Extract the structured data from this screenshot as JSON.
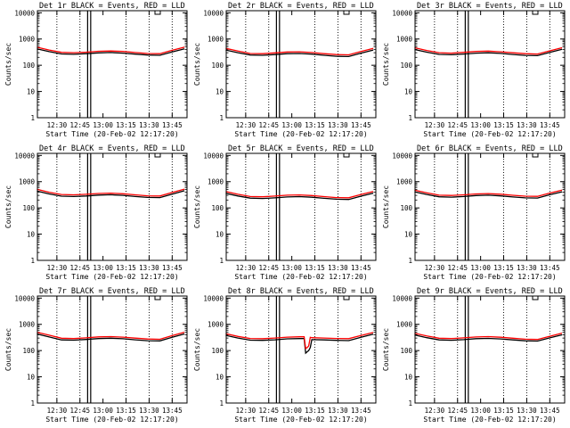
{
  "chart_data": [
    {
      "type": "line",
      "title": "Det 1r BLACK = Events, RED = LLD",
      "xlabel": "Start Time (20-Feb-02 12:17:20)",
      "ylabel": "Counts/sec",
      "yscale": "log",
      "ylim": [
        1,
        12000
      ],
      "xlim": [
        "12:17:20",
        "13:54:40"
      ],
      "yticks": [
        "1",
        "10",
        "100",
        "1000",
        "10000"
      ],
      "xticks": [
        "12:30",
        "12:45",
        "13:00",
        "13:15",
        "13:30",
        "13:45"
      ],
      "vlines_dotted": [
        "12:30",
        "12:45",
        "13:15",
        "13:30",
        "13:45"
      ],
      "vlines_solid": [
        "12:50",
        "12:52"
      ],
      "series": [
        {
          "name": "Events",
          "color": "#000000",
          "x": [
            "12:17",
            "12:25",
            "12:33",
            "12:41",
            "12:49",
            "12:57",
            "13:05",
            "13:13",
            "13:21",
            "13:29",
            "13:37",
            "13:45",
            "13:53"
          ],
          "y": [
            420,
            330,
            270,
            262,
            275,
            295,
            305,
            290,
            265,
            245,
            240,
            320,
            420
          ]
        },
        {
          "name": "LLD",
          "color": "#ff0000",
          "x": [
            "12:17",
            "12:25",
            "12:33",
            "12:41",
            "12:49",
            "12:57",
            "13:05",
            "13:13",
            "13:21",
            "13:29",
            "13:37",
            "13:45",
            "13:53"
          ],
          "y": [
            490,
            380,
            310,
            300,
            315,
            340,
            350,
            335,
            305,
            280,
            275,
            370,
            490
          ]
        }
      ]
    },
    {
      "type": "line",
      "title": "Det 2r BLACK = Events, RED = LLD",
      "xlabel": "Start Time (20-Feb-02 12:17:20)",
      "ylabel": "Counts/sec",
      "yscale": "log",
      "ylim": [
        1,
        12000
      ],
      "xlim": [
        "12:17:20",
        "13:54:40"
      ],
      "yticks": [
        "1",
        "10",
        "100",
        "1000",
        "10000"
      ],
      "xticks": [
        "12:30",
        "12:45",
        "13:00",
        "13:15",
        "13:30",
        "13:45"
      ],
      "vlines_dotted": [
        "12:30",
        "12:45",
        "13:15",
        "13:30",
        "13:45"
      ],
      "vlines_solid": [
        "12:50",
        "12:52"
      ],
      "series": [
        {
          "name": "Events",
          "color": "#000000",
          "x": [
            "12:17",
            "12:25",
            "12:33",
            "12:41",
            "12:49",
            "12:57",
            "13:05",
            "13:13",
            "13:21",
            "13:29",
            "13:37",
            "13:45",
            "13:53"
          ],
          "y": [
            380,
            300,
            245,
            240,
            255,
            275,
            280,
            265,
            240,
            220,
            215,
            290,
            380
          ]
        },
        {
          "name": "LLD",
          "color": "#ff0000",
          "x": [
            "12:17",
            "12:25",
            "12:33",
            "12:41",
            "12:49",
            "12:57",
            "13:05",
            "13:13",
            "13:21",
            "13:29",
            "13:37",
            "13:45",
            "13:53"
          ],
          "y": [
            440,
            345,
            280,
            275,
            295,
            320,
            325,
            305,
            275,
            255,
            250,
            335,
            440
          ]
        }
      ]
    },
    {
      "type": "line",
      "title": "Det 3r BLACK = Events, RED = LLD",
      "xlabel": "Start Time (20-Feb-02 12:17:20)",
      "ylabel": "Counts/sec",
      "yscale": "log",
      "ylim": [
        1,
        12000
      ],
      "xlim": [
        "12:17:20",
        "13:54:40"
      ],
      "yticks": [
        "1",
        "10",
        "100",
        "1000",
        "10000"
      ],
      "xticks": [
        "12:30",
        "12:45",
        "13:00",
        "13:15",
        "13:30",
        "13:45"
      ],
      "vlines_dotted": [
        "12:30",
        "12:45",
        "13:15",
        "13:30",
        "13:45"
      ],
      "vlines_solid": [
        "12:50",
        "12:52"
      ],
      "series": [
        {
          "name": "Events",
          "color": "#000000",
          "x": [
            "12:17",
            "12:25",
            "12:33",
            "12:41",
            "12:49",
            "12:57",
            "13:05",
            "13:13",
            "13:21",
            "13:29",
            "13:37",
            "13:45",
            "13:53"
          ],
          "y": [
            400,
            315,
            260,
            252,
            268,
            290,
            298,
            282,
            258,
            238,
            232,
            310,
            405
          ]
        },
        {
          "name": "LLD",
          "color": "#ff0000",
          "x": [
            "12:17",
            "12:25",
            "12:33",
            "12:41",
            "12:49",
            "12:57",
            "13:05",
            "13:13",
            "13:21",
            "13:29",
            "13:37",
            "13:45",
            "13:53"
          ],
          "y": [
            465,
            365,
            300,
            290,
            310,
            335,
            345,
            325,
            298,
            275,
            268,
            355,
            465
          ]
        }
      ]
    },
    {
      "type": "line",
      "title": "Det 4r BLACK = Events, RED = LLD",
      "xlabel": "Start Time (20-Feb-02 12:17:20)",
      "ylabel": "Counts/sec",
      "yscale": "log",
      "ylim": [
        1,
        12000
      ],
      "xlim": [
        "12:17:20",
        "13:54:40"
      ],
      "yticks": [
        "1",
        "10",
        "100",
        "1000",
        "10000"
      ],
      "xticks": [
        "12:30",
        "12:45",
        "13:00",
        "13:15",
        "13:30",
        "13:45"
      ],
      "vlines_dotted": [
        "12:30",
        "12:45",
        "13:15",
        "13:30",
        "13:45"
      ],
      "vlines_solid": [
        "12:50",
        "12:52"
      ],
      "series": [
        {
          "name": "Events",
          "color": "#000000",
          "x": [
            "12:17",
            "12:25",
            "12:33",
            "12:41",
            "12:49",
            "12:57",
            "13:05",
            "13:13",
            "13:21",
            "13:29",
            "13:37",
            "13:45",
            "13:53"
          ],
          "y": [
            440,
            340,
            280,
            272,
            285,
            308,
            318,
            300,
            272,
            252,
            248,
            335,
            450
          ]
        },
        {
          "name": "LLD",
          "color": "#ff0000",
          "x": [
            "12:17",
            "12:25",
            "12:33",
            "12:41",
            "12:49",
            "12:57",
            "13:05",
            "13:13",
            "13:21",
            "13:29",
            "13:37",
            "13:45",
            "13:53"
          ],
          "y": [
            510,
            395,
            325,
            315,
            330,
            355,
            365,
            345,
            315,
            290,
            285,
            385,
            520
          ]
        }
      ]
    },
    {
      "type": "line",
      "title": "Det 5r BLACK = Events, RED = LLD",
      "xlabel": "Start Time (20-Feb-02 12:17:20)",
      "ylabel": "Counts/sec",
      "yscale": "log",
      "ylim": [
        1,
        12000
      ],
      "xlim": [
        "12:17:20",
        "13:54:40"
      ],
      "yticks": [
        "1",
        "10",
        "100",
        "1000",
        "10000"
      ],
      "xticks": [
        "12:30",
        "12:45",
        "13:00",
        "13:15",
        "13:30",
        "13:45"
      ],
      "vlines_dotted": [
        "12:30",
        "12:45",
        "13:15",
        "13:30",
        "13:45"
      ],
      "vlines_solid": [
        "12:50",
        "12:52"
      ],
      "series": [
        {
          "name": "Events",
          "color": "#000000",
          "x": [
            "12:17",
            "12:25",
            "12:33",
            "12:41",
            "12:49",
            "12:57",
            "13:05",
            "13:13",
            "13:21",
            "13:29",
            "13:37",
            "13:45",
            "13:53"
          ],
          "y": [
            360,
            285,
            235,
            228,
            242,
            262,
            270,
            255,
            232,
            214,
            210,
            280,
            365
          ]
        },
        {
          "name": "LLD",
          "color": "#ff0000",
          "x": [
            "12:17",
            "12:25",
            "12:33",
            "12:41",
            "12:49",
            "12:57",
            "13:05",
            "13:13",
            "13:21",
            "13:29",
            "13:37",
            "13:45",
            "13:53"
          ],
          "y": [
            420,
            330,
            272,
            265,
            282,
            305,
            312,
            295,
            270,
            248,
            243,
            325,
            425
          ]
        }
      ]
    },
    {
      "type": "line",
      "title": "Det 6r BLACK = Events, RED = LLD",
      "xlabel": "Start Time (20-Feb-02 12:17:20)",
      "ylabel": "Counts/sec",
      "yscale": "log",
      "ylim": [
        1,
        12000
      ],
      "xlim": [
        "12:17:20",
        "13:54:40"
      ],
      "yticks": [
        "1",
        "10",
        "100",
        "1000",
        "10000"
      ],
      "xticks": [
        "12:30",
        "12:45",
        "13:00",
        "13:15",
        "13:30",
        "13:45"
      ],
      "vlines_dotted": [
        "12:30",
        "12:45",
        "13:15",
        "13:30",
        "13:45"
      ],
      "vlines_solid": [
        "12:50",
        "12:52"
      ],
      "series": [
        {
          "name": "Events",
          "color": "#000000",
          "x": [
            "12:17",
            "12:25",
            "12:33",
            "12:41",
            "12:49",
            "12:57",
            "13:05",
            "13:13",
            "13:21",
            "13:29",
            "13:37",
            "13:45",
            "13:53"
          ],
          "y": [
            410,
            325,
            265,
            258,
            272,
            295,
            305,
            288,
            262,
            242,
            238,
            318,
            410
          ]
        },
        {
          "name": "LLD",
          "color": "#ff0000",
          "x": [
            "12:17",
            "12:25",
            "12:33",
            "12:41",
            "12:49",
            "12:57",
            "13:05",
            "13:13",
            "13:21",
            "13:29",
            "13:37",
            "13:45",
            "13:53"
          ],
          "y": [
            475,
            375,
            305,
            298,
            315,
            340,
            352,
            332,
            302,
            280,
            275,
            368,
            478
          ]
        }
      ]
    },
    {
      "type": "line",
      "title": "Det 7r BLACK = Events, RED = LLD",
      "xlabel": "Start Time (20-Feb-02 12:17:20)",
      "ylabel": "Counts/sec",
      "yscale": "log",
      "ylim": [
        1,
        12000
      ],
      "xlim": [
        "12:17:20",
        "13:54:40"
      ],
      "yticks": [
        "1",
        "10",
        "100",
        "1000",
        "10000"
      ],
      "xticks": [
        "12:30",
        "12:45",
        "13:00",
        "13:15",
        "13:30",
        "13:45"
      ],
      "vlines_dotted": [
        "12:30",
        "12:45",
        "13:15",
        "13:30",
        "13:45"
      ],
      "vlines_solid": [
        "12:50",
        "12:52"
      ],
      "series": [
        {
          "name": "Events",
          "color": "#000000",
          "x": [
            "12:17",
            "12:25",
            "12:33",
            "12:41",
            "12:49",
            "12:57",
            "13:05",
            "13:13",
            "13:21",
            "13:29",
            "13:37",
            "13:45",
            "13:53"
          ],
          "y": [
            430,
            330,
            255,
            250,
            265,
            288,
            296,
            282,
            258,
            238,
            234,
            320,
            430
          ]
        },
        {
          "name": "LLD",
          "color": "#ff0000",
          "x": [
            "12:17",
            "12:25",
            "12:33",
            "12:41",
            "12:49",
            "12:57",
            "13:05",
            "13:13",
            "13:21",
            "13:29",
            "13:37",
            "13:45",
            "13:53"
          ],
          "y": [
            500,
            385,
            295,
            288,
            305,
            332,
            342,
            326,
            298,
            275,
            270,
            370,
            500
          ]
        }
      ]
    },
    {
      "type": "line",
      "title": "Det 8r BLACK = Events, RED = LLD",
      "xlabel": "Start Time (20-Feb-02 12:17:20)",
      "ylabel": "Counts/sec",
      "yscale": "log",
      "ylim": [
        1,
        12000
      ],
      "xlim": [
        "12:17:20",
        "13:54:40"
      ],
      "yticks": [
        "1",
        "10",
        "100",
        "1000",
        "10000"
      ],
      "xticks": [
        "12:30",
        "12:45",
        "13:00",
        "13:15",
        "13:30",
        "13:45"
      ],
      "vlines_dotted": [
        "12:30",
        "12:45",
        "13:15",
        "13:30",
        "13:45"
      ],
      "vlines_solid": [
        "12:50",
        "12:52"
      ],
      "series": [
        {
          "name": "Events",
          "color": "#000000",
          "x": [
            "12:17",
            "12:25",
            "12:33",
            "12:41",
            "12:49",
            "12:57",
            "13:05",
            "13:08",
            "13:09",
            "13:10",
            "13:11",
            "13:12",
            "13:13",
            "13:21",
            "13:29",
            "13:37",
            "13:45",
            "13:53"
          ],
          "y": [
            380,
            300,
            250,
            246,
            258,
            280,
            288,
            290,
            80,
            90,
            100,
            130,
            262,
            255,
            245,
            240,
            320,
            420
          ]
        },
        {
          "name": "LLD",
          "color": "#ff0000",
          "x": [
            "12:17",
            "12:25",
            "12:33",
            "12:41",
            "12:49",
            "12:57",
            "13:05",
            "13:08",
            "13:09",
            "13:10",
            "13:11",
            "13:12",
            "13:13",
            "13:21",
            "13:29",
            "13:37",
            "13:45",
            "13:53"
          ],
          "y": [
            440,
            345,
            290,
            285,
            300,
            325,
            335,
            335,
            120,
            130,
            150,
            320,
            310,
            300,
            290,
            285,
            375,
            490
          ]
        }
      ]
    },
    {
      "type": "line",
      "title": "Det 9r BLACK = Events, RED = LLD",
      "xlabel": "Start Time (20-Feb-02 12:17:20)",
      "ylabel": "Counts/sec",
      "yscale": "log",
      "ylim": [
        1,
        12000
      ],
      "xlim": [
        "12:17:20",
        "13:54:40"
      ],
      "yticks": [
        "1",
        "10",
        "100",
        "1000",
        "10000"
      ],
      "xticks": [
        "12:30",
        "12:45",
        "13:00",
        "13:15",
        "13:30",
        "13:45"
      ],
      "vlines_dotted": [
        "12:30",
        "12:45",
        "13:15",
        "13:30",
        "13:45"
      ],
      "vlines_solid": [
        "12:50",
        "12:52"
      ],
      "series": [
        {
          "name": "Events",
          "color": "#000000",
          "x": [
            "12:17",
            "12:25",
            "12:33",
            "12:41",
            "12:49",
            "12:57",
            "13:05",
            "13:13",
            "13:21",
            "13:29",
            "13:37",
            "13:45",
            "13:53"
          ],
          "y": [
            395,
            310,
            255,
            248,
            262,
            285,
            292,
            278,
            255,
            235,
            230,
            305,
            400
          ]
        },
        {
          "name": "LLD",
          "color": "#ff0000",
          "x": [
            "12:17",
            "12:25",
            "12:33",
            "12:41",
            "12:49",
            "12:57",
            "13:05",
            "13:13",
            "13:21",
            "13:29",
            "13:37",
            "13:45",
            "13:53"
          ],
          "y": [
            460,
            360,
            295,
            288,
            305,
            330,
            340,
            322,
            295,
            272,
            266,
            352,
            462
          ]
        }
      ]
    }
  ]
}
